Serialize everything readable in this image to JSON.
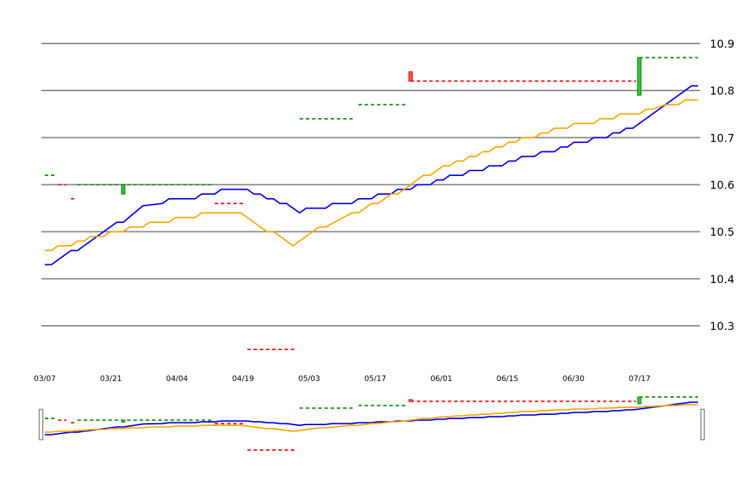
{
  "chart_data": {
    "type": "line",
    "title": "",
    "xlabel": "",
    "ylabel": "",
    "ylim": [
      10.3,
      10.9
    ],
    "y_ticks": [
      "10.3",
      "10.4",
      "10.5",
      "10.6",
      "10.7",
      "10.8",
      "10.9"
    ],
    "x_tick_labels": [
      "03/07",
      "03/21",
      "04/04",
      "04/19",
      "05/03",
      "05/17",
      "06/01",
      "06/15",
      "06/30",
      "07/17"
    ],
    "grid": true,
    "legend": "none",
    "colors": {
      "blue_series": "#0000ee",
      "orange_series": "#ffa500",
      "up": "#008800",
      "down": "#ee0000",
      "grid": "#888888"
    },
    "series": [
      {
        "values": [
          [
            0,
            10.43
          ],
          [
            1,
            10.43
          ],
          [
            4,
            10.46
          ],
          [
            5,
            10.46
          ],
          [
            11,
            10.52
          ],
          [
            12,
            10.52
          ],
          [
            15,
            10.555
          ],
          [
            18,
            10.56
          ],
          [
            19,
            10.57
          ],
          [
            23,
            10.57
          ],
          [
            24,
            10.58
          ],
          [
            26,
            10.58
          ],
          [
            27,
            10.59
          ],
          [
            31,
            10.59
          ],
          [
            32,
            10.58
          ],
          [
            33,
            10.58
          ],
          [
            34,
            10.57
          ],
          [
            35,
            10.57
          ],
          [
            36,
            10.56
          ],
          [
            37,
            10.56
          ],
          [
            39,
            10.54
          ],
          [
            40,
            10.55
          ],
          [
            43,
            10.55
          ],
          [
            44,
            10.56
          ],
          [
            47,
            10.56
          ],
          [
            48,
            10.57
          ],
          [
            50,
            10.57
          ],
          [
            51,
            10.58
          ],
          [
            53,
            10.58
          ],
          [
            54,
            10.59
          ],
          [
            56,
            10.59
          ],
          [
            57,
            10.6
          ],
          [
            59,
            10.6
          ],
          [
            60,
            10.61
          ],
          [
            61,
            10.61
          ],
          [
            62,
            10.62
          ],
          [
            64,
            10.62
          ],
          [
            65,
            10.63
          ],
          [
            67,
            10.63
          ],
          [
            68,
            10.64
          ],
          [
            70,
            10.64
          ],
          [
            71,
            10.65
          ],
          [
            72,
            10.65
          ],
          [
            73,
            10.66
          ],
          [
            75,
            10.66
          ],
          [
            76,
            10.67
          ],
          [
            78,
            10.67
          ],
          [
            79,
            10.68
          ],
          [
            80,
            10.68
          ],
          [
            81,
            10.69
          ],
          [
            83,
            10.69
          ],
          [
            84,
            10.7
          ],
          [
            86,
            10.7
          ],
          [
            87,
            10.71
          ],
          [
            88,
            10.71
          ],
          [
            89,
            10.72
          ],
          [
            90,
            10.72
          ],
          [
            99,
            10.81
          ],
          [
            100,
            10.81
          ]
        ]
      },
      {
        "values": [
          [
            0,
            10.46
          ],
          [
            1,
            10.46
          ],
          [
            2,
            10.47
          ],
          [
            4,
            10.47
          ],
          [
            5,
            10.48
          ],
          [
            6,
            10.48
          ],
          [
            7,
            10.49
          ],
          [
            9,
            10.49
          ],
          [
            10,
            10.5
          ],
          [
            12,
            10.5
          ],
          [
            13,
            10.51
          ],
          [
            15,
            10.51
          ],
          [
            16,
            10.52
          ],
          [
            19,
            10.52
          ],
          [
            20,
            10.53
          ],
          [
            23,
            10.53
          ],
          [
            24,
            10.54
          ],
          [
            30,
            10.54
          ],
          [
            34,
            10.5
          ],
          [
            35,
            10.5
          ],
          [
            38,
            10.47
          ],
          [
            42,
            10.51
          ],
          [
            43,
            10.51
          ],
          [
            47,
            10.54
          ],
          [
            48,
            10.54
          ],
          [
            50,
            10.56
          ],
          [
            51,
            10.56
          ],
          [
            53,
            10.58
          ],
          [
            54,
            10.58
          ],
          [
            56,
            10.6
          ],
          [
            58,
            10.62
          ],
          [
            59,
            10.62
          ],
          [
            61,
            10.64
          ],
          [
            62,
            10.64
          ],
          [
            63,
            10.65
          ],
          [
            64,
            10.65
          ],
          [
            65,
            10.66
          ],
          [
            66,
            10.66
          ],
          [
            67,
            10.67
          ],
          [
            68,
            10.67
          ],
          [
            69,
            10.68
          ],
          [
            70,
            10.68
          ],
          [
            71,
            10.69
          ],
          [
            72,
            10.69
          ],
          [
            73,
            10.7
          ],
          [
            75,
            10.7
          ],
          [
            76,
            10.71
          ],
          [
            77,
            10.71
          ],
          [
            78,
            10.72
          ],
          [
            80,
            10.72
          ],
          [
            81,
            10.73
          ],
          [
            84,
            10.73
          ],
          [
            85,
            10.74
          ],
          [
            87,
            10.74
          ],
          [
            88,
            10.75
          ],
          [
            91,
            10.75
          ],
          [
            92,
            10.76
          ],
          [
            93,
            10.76
          ],
          [
            95,
            10.77
          ],
          [
            97,
            10.77
          ],
          [
            98,
            10.78
          ],
          [
            100,
            10.78
          ]
        ]
      }
    ],
    "levels": [
      {
        "x1": 0.0,
        "x2": 1.5,
        "y": 10.62,
        "color": "up"
      },
      {
        "x1": 2.0,
        "x2": 3.3,
        "y": 10.6,
        "color": "down"
      },
      {
        "x1": 4.0,
        "x2": 4.5,
        "y": 10.57,
        "color": "down"
      },
      {
        "x1": 5.0,
        "x2": 25.5,
        "y": 10.6,
        "color": "up"
      },
      {
        "x1": 26.0,
        "x2": 30.5,
        "y": 10.56,
        "color": "down"
      },
      {
        "x1": 31.0,
        "x2": 38.5,
        "y": 10.25,
        "color": "down"
      },
      {
        "x1": 39.0,
        "x2": 47.5,
        "y": 10.74,
        "color": "up"
      },
      {
        "x1": 48.0,
        "x2": 55.5,
        "y": 10.77,
        "color": "up"
      },
      {
        "x1": 56.0,
        "x2": 90.5,
        "y": 10.82,
        "color": "down"
      },
      {
        "x1": 91.0,
        "x2": 100.0,
        "y": 10.87,
        "color": "up"
      }
    ],
    "candles": [
      {
        "x": 12,
        "open": 10.58,
        "close": 10.6,
        "color": "up"
      },
      {
        "x": 56,
        "open": 10.84,
        "close": 10.82,
        "color": "down"
      },
      {
        "x": 91,
        "open": 10.79,
        "close": 10.87,
        "color": "up"
      }
    ]
  }
}
